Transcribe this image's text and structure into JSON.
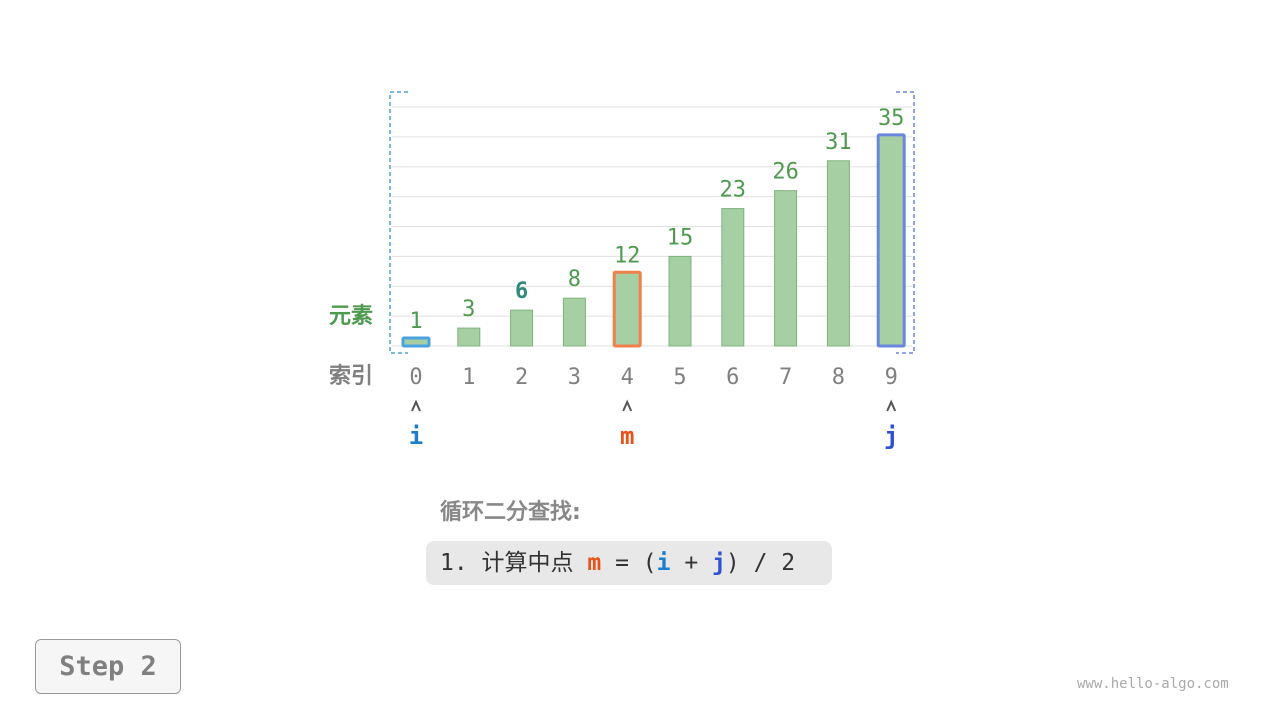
{
  "chart_data": {
    "type": "bar",
    "categories": [
      "0",
      "1",
      "2",
      "3",
      "4",
      "5",
      "6",
      "7",
      "8",
      "9"
    ],
    "values": [
      1,
      3,
      6,
      8,
      12,
      15,
      23,
      26,
      31,
      35
    ],
    "row_labels": {
      "values": "元素",
      "index": "索引"
    },
    "ylim": [
      0,
      40
    ],
    "grid": true,
    "highlight_value_index": 2,
    "pointers": [
      {
        "name": "i",
        "index": 0,
        "color": "#1a7fcf",
        "outline": "#4aa3e0"
      },
      {
        "name": "m",
        "index": 4,
        "color": "#e8531a",
        "outline": "#f0804a"
      },
      {
        "name": "j",
        "index": 9,
        "color": "#3050d0",
        "outline": "#6a86dc"
      }
    ],
    "colors": {
      "bar_fill": "#a6cfa4",
      "bar_stroke": "#7fb27d",
      "value_label": "#4e9a4e",
      "highlight_label": "#2e8a7e",
      "index_label": "#808080"
    }
  },
  "caption": {
    "title": "循环二分查找:",
    "step_prefix": "1. 计算中点 ",
    "m": "m",
    "eq": " = (",
    "i": "i",
    "plus": " + ",
    "j": "j",
    "tail": ") / 2"
  },
  "step_label": "Step 2",
  "watermark": "www.hello-algo.com"
}
